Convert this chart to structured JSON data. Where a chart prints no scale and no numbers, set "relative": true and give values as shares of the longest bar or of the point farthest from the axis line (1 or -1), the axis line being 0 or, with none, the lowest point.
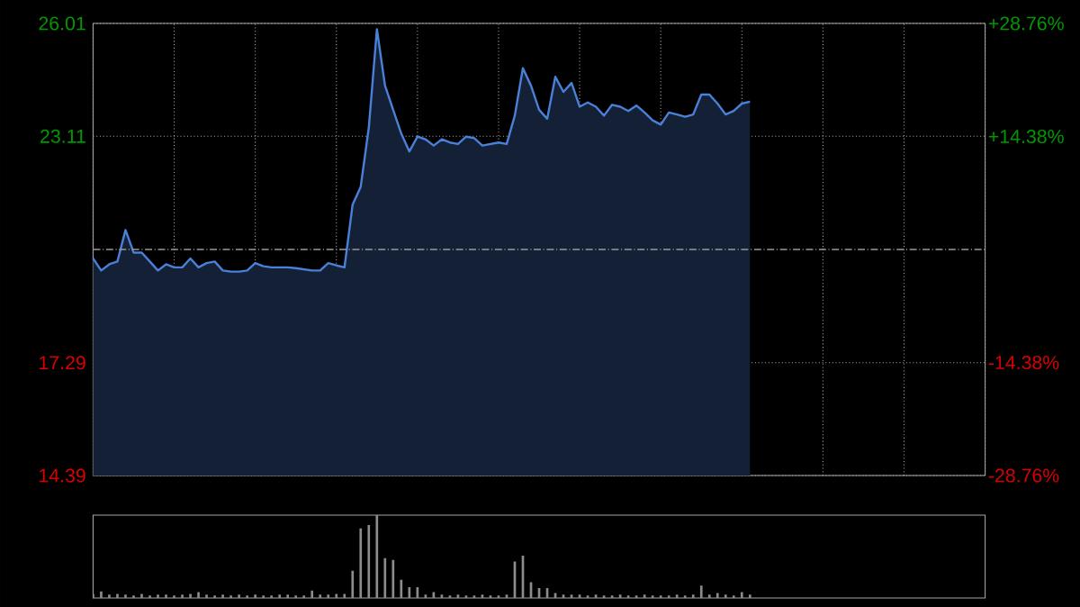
{
  "chart_data": [
    {
      "type": "area",
      "categories": [
        null,
        null,
        null,
        null,
        null,
        null,
        null,
        null,
        null,
        null,
        null,
        null,
        null,
        null,
        null,
        null,
        null,
        null,
        null,
        null,
        null,
        null,
        null,
        null,
        null,
        null,
        null,
        null,
        null,
        null,
        null,
        null,
        null,
        null,
        null,
        null,
        null,
        null,
        null,
        null,
        null,
        null,
        null,
        null,
        null,
        null,
        null,
        null,
        null,
        null,
        null,
        null,
        null,
        null,
        null,
        null,
        null,
        null,
        null,
        null,
        null,
        null,
        null,
        null,
        null,
        null,
        null,
        null,
        null,
        null,
        null,
        null,
        null,
        null,
        null,
        null,
        null,
        null,
        null,
        null,
        null,
        null,
        null,
        null,
        null,
        null,
        null,
        null,
        null,
        null,
        null,
        null,
        null,
        null,
        null,
        null,
        null,
        null,
        null,
        null,
        null,
        null,
        null,
        null,
        null,
        null,
        null,
        null,
        null,
        null,
        null
      ],
      "series": [
        {
          "color": "#4a80d8",
          "values": [
            19.97,
            19.66,
            19.82,
            19.89,
            20.7,
            20.12,
            20.12,
            19.89,
            19.66,
            19.82,
            19.74,
            19.74,
            19.97,
            19.74,
            19.85,
            19.89,
            19.66,
            19.63,
            19.63,
            19.66,
            19.85,
            19.77,
            19.74,
            19.74,
            19.74,
            19.72,
            19.69,
            19.66,
            19.66,
            19.85,
            19.79,
            19.74,
            21.35,
            21.81,
            23.33,
            25.86,
            24.41,
            23.79,
            23.18,
            22.72,
            23.1,
            23.03,
            22.87,
            23.03,
            22.95,
            22.91,
            23.1,
            23.06,
            22.87,
            22.91,
            22.95,
            22.91,
            23.64,
            24.86,
            24.41,
            23.79,
            23.56,
            24.64,
            24.25,
            24.48,
            23.87,
            23.98,
            23.87,
            23.64,
            23.92,
            23.87,
            23.76,
            23.9,
            23.72,
            23.52,
            23.41,
            23.72,
            23.67,
            23.61,
            23.67,
            24.18,
            24.18,
            23.95,
            23.67,
            23.76,
            23.95,
            24.0,
            null,
            null,
            null,
            null,
            null,
            null,
            null,
            null,
            null,
            null,
            null,
            null,
            null,
            null,
            null,
            null,
            null,
            null,
            null,
            null,
            null,
            null,
            null,
            null,
            null,
            null,
            null,
            null,
            null
          ]
        }
      ],
      "ylim": [
        14.39,
        26.01
      ],
      "yticks": [
        14.39,
        17.29,
        23.11,
        26.01
      ],
      "y2lim": [
        -28.76,
        28.76
      ],
      "y2ticks": [
        {
          "value": -28.76,
          "label": "-28.76%"
        },
        {
          "value": -14.38,
          "label": "-14.38%"
        },
        {
          "value": 14.38,
          "label": "+14.38%"
        },
        {
          "value": 28.76,
          "label": "+28.76%"
        }
      ],
      "ref_lines": [
        {
          "axis": "y",
          "value": 20.2
        }
      ],
      "grid": true
    },
    {
      "type": "bar",
      "relative": true,
      "categories": [
        null,
        null,
        null,
        null,
        null,
        null,
        null,
        null,
        null,
        null,
        null,
        null,
        null,
        null,
        null,
        null,
        null,
        null,
        null,
        null,
        null,
        null,
        null,
        null,
        null,
        null,
        null,
        null,
        null,
        null,
        null,
        null,
        null,
        null,
        null,
        null,
        null,
        null,
        null,
        null,
        null,
        null,
        null,
        null,
        null,
        null,
        null,
        null,
        null,
        null,
        null,
        null,
        null,
        null,
        null,
        null,
        null,
        null,
        null,
        null,
        null,
        null,
        null,
        null,
        null,
        null,
        null,
        null,
        null,
        null,
        null,
        null,
        null,
        null,
        null,
        null,
        null,
        null,
        null,
        null,
        null,
        null,
        null,
        null,
        null,
        null,
        null,
        null,
        null,
        null,
        null,
        null,
        null,
        null,
        null,
        null,
        null,
        null,
        null,
        null,
        null,
        null,
        null,
        null,
        null,
        null,
        null,
        null,
        null,
        null,
        null
      ],
      "color": "#8c8c8c",
      "values": [
        0.05,
        0.08,
        0.04,
        0.05,
        0.04,
        0.03,
        0.05,
        0.03,
        0.04,
        0.04,
        0.03,
        0.04,
        0.05,
        0.07,
        0.04,
        0.03,
        0.04,
        0.03,
        0.04,
        0.03,
        0.04,
        0.03,
        0.03,
        0.04,
        0.04,
        0.03,
        0.03,
        0.09,
        0.04,
        0.04,
        0.05,
        0.05,
        0.33,
        0.84,
        0.88,
        1,
        0.48,
        0.46,
        0.22,
        0.13,
        0.13,
        0.04,
        0.07,
        0.04,
        0.03,
        0.04,
        0.03,
        0.03,
        0.04,
        0.03,
        0.03,
        0.04,
        0.44,
        0.51,
        0.19,
        0.12,
        0.12,
        0.06,
        0.04,
        0.04,
        0.04,
        0.03,
        0.04,
        0.03,
        0.03,
        0.04,
        0.03,
        0.03,
        0.04,
        0.03,
        0.03,
        0.03,
        0.04,
        0.03,
        0.04,
        0.15,
        0.04,
        0.06,
        0.04,
        0.03,
        0.07,
        0.04,
        null,
        null,
        null,
        null,
        null,
        null,
        null,
        null,
        null,
        null,
        null,
        null,
        null,
        null,
        null,
        null,
        null,
        null,
        null,
        null,
        null,
        null,
        null,
        null,
        null,
        null,
        null,
        null,
        null
      ]
    }
  ]
}
